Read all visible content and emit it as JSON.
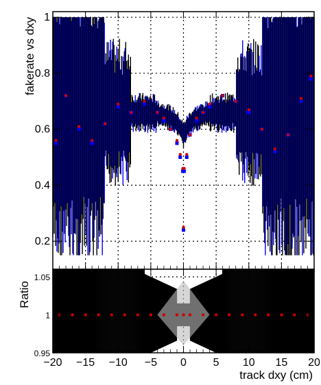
{
  "chart_data": [
    {
      "type": "scatter",
      "panel": "main",
      "ylabel": "fakerate vs dxy",
      "xlim": [
        -20,
        20
      ],
      "ylim": [
        0.1,
        1.02
      ],
      "grid": true,
      "x_ticks": [
        "-20",
        "-15",
        "-10",
        "-5",
        "0",
        "5",
        "10",
        "15",
        "20"
      ],
      "y_ticks": [
        "0.2",
        "0.4",
        "0.6",
        "0.8",
        "1"
      ],
      "y_tick_values": [
        0.2,
        0.4,
        0.6,
        0.8,
        1.0
      ],
      "series": [
        {
          "color": "#0000ff",
          "x": [
            -19.5,
            -18,
            -16,
            -14,
            -12,
            -10,
            -8,
            -6,
            -4,
            -3,
            -2,
            -1,
            -0.5,
            -0.1,
            0,
            0.1,
            0.5,
            1,
            2,
            3,
            4,
            6,
            8,
            10,
            12,
            14,
            16,
            18,
            19.5
          ],
          "y": [
            0.55,
            0.72,
            0.6,
            0.55,
            0.62,
            0.68,
            0.66,
            0.69,
            0.66,
            0.63,
            0.6,
            0.55,
            0.5,
            0.45,
            0.24,
            0.45,
            0.5,
            0.58,
            0.63,
            0.66,
            0.68,
            0.72,
            0.7,
            0.66,
            0.6,
            0.52,
            0.58,
            0.7,
            0.78
          ]
        },
        {
          "color": "#cc0000",
          "x": [
            -19.5,
            -18,
            -16,
            -14,
            -12,
            -10,
            -8,
            -6,
            -4,
            -3,
            -2,
            -1,
            -0.5,
            -0.1,
            0,
            0.1,
            0.5,
            1,
            2,
            3,
            4,
            6,
            8,
            10,
            12,
            14,
            16,
            18,
            19.5
          ],
          "y": [
            0.56,
            0.72,
            0.61,
            0.56,
            0.62,
            0.69,
            0.66,
            0.7,
            0.66,
            0.64,
            0.6,
            0.56,
            0.51,
            0.46,
            0.25,
            0.46,
            0.51,
            0.58,
            0.64,
            0.66,
            0.69,
            0.72,
            0.7,
            0.67,
            0.6,
            0.53,
            0.58,
            0.71,
            0.79
          ]
        }
      ]
    },
    {
      "type": "scatter",
      "panel": "ratio",
      "ylabel": "Ratio",
      "xlabel": "track dxy (cm)",
      "xlim": [
        -20,
        20
      ],
      "ylim": [
        0.95,
        1.06
      ],
      "grid": true,
      "x_ticks": [
        "-20",
        "-15",
        "-10",
        "-5",
        "0",
        "5",
        "10",
        "15",
        "20"
      ],
      "x_tick_values": [
        -20,
        -15,
        -10,
        -5,
        0,
        5,
        10,
        15,
        20
      ],
      "y_ticks": [
        "0.95",
        "1",
        "1.05"
      ],
      "y_tick_values": [
        0.95,
        1.0,
        1.05
      ],
      "series": [
        {
          "color": "#cc0000",
          "x": [
            -19,
            -17,
            -15,
            -13,
            -11,
            -9,
            -7,
            -5,
            -3,
            -1,
            0,
            1,
            3,
            5,
            7,
            9,
            11,
            13,
            15,
            17,
            19
          ],
          "y": [
            1.0,
            1.0,
            1.0,
            1.0,
            1.0,
            1.0,
            1.0,
            1.0,
            1.0,
            1.0,
            1.0,
            1.0,
            1.0,
            1.0,
            1.0,
            1.0,
            1.0,
            1.0,
            1.0,
            1.0,
            1.0
          ]
        }
      ]
    }
  ]
}
